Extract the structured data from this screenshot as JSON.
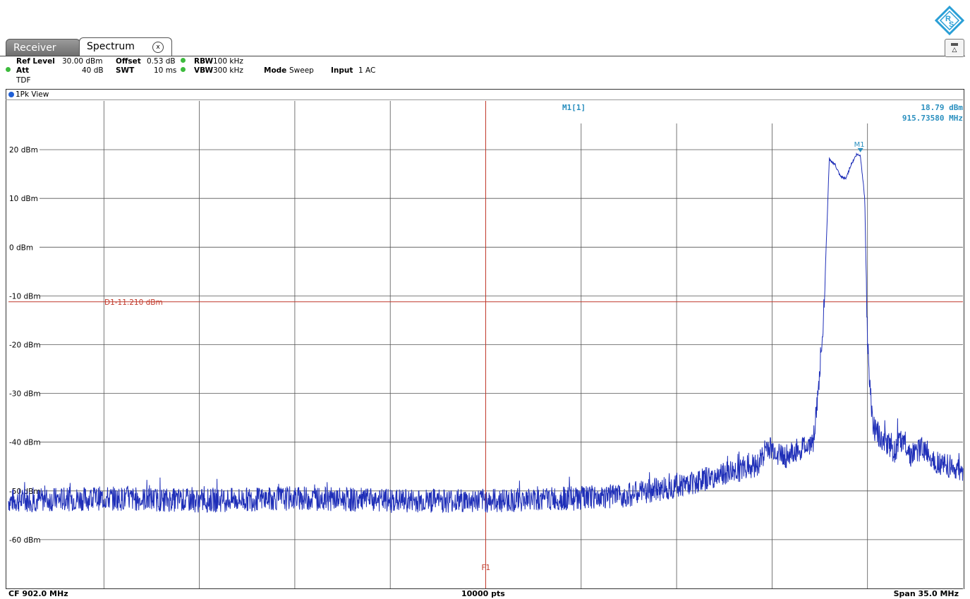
{
  "tabs": {
    "receiver": "Receiver",
    "spectrum": "Spectrum",
    "close": "x"
  },
  "settings": {
    "ref_level_label": "Ref Level",
    "ref_level_value": "30.00 dBm",
    "offset_label": "Offset",
    "offset_value": "0.53 dB",
    "rbw_label": "RBW",
    "rbw_value": "100 kHz",
    "att_label": "Att",
    "att_value": "40 dB",
    "swt_label": "SWT",
    "swt_value": "10 ms",
    "vbw_label": "VBW",
    "vbw_value": "300 kHz",
    "mode_label": "Mode",
    "mode_value": "Sweep",
    "input_label": "Input",
    "input_value": "1 AC",
    "transducer": "TDF"
  },
  "view_label": "1Pk View",
  "marker": {
    "name": "M1[1]",
    "level": "18.79 dBm",
    "frequency": "915.73580 MHz",
    "tag": "M1"
  },
  "display_line": {
    "label": "D1-11.210 dBm",
    "level_dbm": -11.21
  },
  "frequency_line": {
    "label": "F1"
  },
  "footer": {
    "center": "CF 902.0 MHz",
    "points": "10000 pts",
    "span": "Span 35.0 MHz"
  },
  "colors": {
    "trace": "#1f2fb8",
    "marker": "#2a8fbf",
    "limit": "#c0392b",
    "grid": "#555555"
  },
  "chart_data": {
    "type": "line",
    "title": "",
    "xlabel": "",
    "ylabel": "",
    "x_unit": "MHz",
    "xlim": [
      884.5,
      919.5
    ],
    "y_ticks": [
      {
        "value": 20,
        "label": "20 dBm"
      },
      {
        "value": 10,
        "label": "10 dBm"
      },
      {
        "value": 0,
        "label": "0 dBm"
      },
      {
        "value": -10,
        "label": "-10 dBm"
      },
      {
        "value": -20,
        "label": "-20 dBm"
      },
      {
        "value": -30,
        "label": "-30 dBm"
      },
      {
        "value": -40,
        "label": "-40 dBm"
      },
      {
        "value": -50,
        "label": "-50 dBm"
      },
      {
        "value": -60,
        "label": "-60 dBm"
      }
    ],
    "ylim": [
      -70,
      30
    ],
    "grid": true,
    "series": [
      {
        "x": [
          884.5,
          888.0,
          891.5,
          895.0,
          898.5,
          902.0,
          905.5,
          907.0,
          909.0,
          910.5,
          912.0,
          912.3,
          913.0,
          914.0,
          914.2,
          914.4,
          914.6,
          914.8,
          915.0,
          915.2,
          915.4,
          915.6,
          915.74,
          915.9,
          916.0,
          916.2,
          916.5,
          917.0,
          917.3,
          917.6,
          918.0,
          918.5,
          919.5
        ],
        "y": [
          -52,
          -51.5,
          -52,
          -51.5,
          -52,
          -52,
          -51.5,
          -51,
          -49,
          -47,
          -44.5,
          -41,
          -43,
          -40,
          -30,
          -13,
          18,
          17,
          14.5,
          14,
          17,
          19,
          18.79,
          10,
          -20,
          -37,
          -39,
          -42,
          -39,
          -43,
          -41,
          -44,
          -46
        ]
      }
    ]
  }
}
